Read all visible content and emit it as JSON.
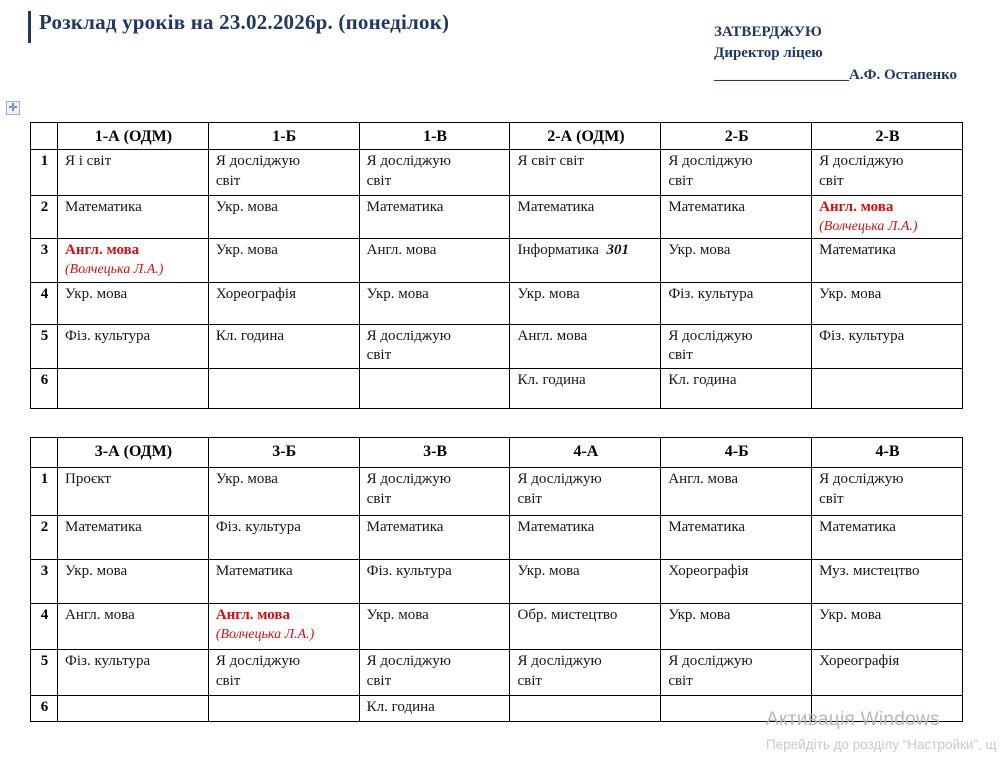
{
  "title": {
    "text": "Розклад уроків на 23.02.2026р. (понеділок)"
  },
  "approval": {
    "line1": "ЗАТВЕРДЖУЮ",
    "line2": "Директор ліцею",
    "line3_underscores": "__________________",
    "line3_name": "А.Ф. Остапенко"
  },
  "colors": {
    "title_navy": "#1F3864",
    "accent_red": "#D40F0F",
    "table_border": "#000000",
    "watermark_gray": "#B4B9BC"
  },
  "icons": {
    "table_move_handle": "✛"
  },
  "tables": [
    {
      "name": "grades-1-2",
      "headers": [
        "",
        "1-А (ОДМ)",
        "1-Б",
        "1-В",
        "2-А (ОДМ)",
        "2-Б",
        "2-В"
      ],
      "rows": [
        {
          "num": "1",
          "cells": [
            "Я і світ",
            "Я досліджую\nсвіт",
            "Я досліджую\nсвіт",
            "Я світ світ",
            "Я досліджую\nсвіт",
            "Я досліджую\nсвіт"
          ]
        },
        {
          "num": "2",
          "cells": [
            "Математика",
            "Укр. мова",
            "Математика",
            "Математика",
            "Математика",
            {
              "main": "Англ. мова",
              "sub": "(Волчецька Л.А.)",
              "style": "red"
            }
          ]
        },
        {
          "num": "3",
          "cells": [
            {
              "main": "Англ. мова",
              "sub": "(Волчецька Л.А.)",
              "style": "red"
            },
            "Укр. мова",
            "Англ. мова",
            {
              "main": "Інформатика",
              "room": "301"
            },
            "Укр. мова",
            "Математика"
          ]
        },
        {
          "num": "4",
          "cells": [
            "Укр. мова",
            "Хореографія",
            "Укр. мова",
            "Укр. мова",
            "Фіз. культура",
            "Укр. мова"
          ]
        },
        {
          "num": "5",
          "cells": [
            "Фіз. культура",
            "Кл. година",
            "Я досліджую\nсвіт",
            "Англ. мова",
            "Я досліджую\nсвіт",
            "Фіз. культура"
          ]
        },
        {
          "num": "6",
          "cells": [
            "",
            "",
            "",
            "Кл. година",
            "Кл. година",
            ""
          ]
        }
      ]
    },
    {
      "name": "grades-3-4",
      "headers": [
        "",
        "3-А (ОДМ)",
        "3-Б",
        "3-В",
        "4-А",
        "4-Б",
        "4-В"
      ],
      "rows": [
        {
          "num": "1",
          "cells": [
            "Проєкт",
            "Укр. мова",
            "Я досліджую\nсвіт",
            "Я досліджую\nсвіт",
            "Англ. мова",
            "Я досліджую\nсвіт"
          ]
        },
        {
          "num": "2",
          "cells": [
            "Математика",
            "Фіз. культура",
            "Математика",
            "Математика",
            "Математика",
            "Математика"
          ]
        },
        {
          "num": "3",
          "cells": [
            "Укр. мова",
            "Математика",
            "Фіз. культура",
            "Укр. мова",
            "Хореографія",
            "Муз. мистецтво"
          ]
        },
        {
          "num": "4",
          "cells": [
            "Англ. мова",
            {
              "main": "Англ. мова",
              "sub": "(Волчецька Л.А.)",
              "style": "red"
            },
            "Укр. мова",
            "Обр. мистецтво",
            "Укр. мова",
            "Укр. мова"
          ]
        },
        {
          "num": "5",
          "cells": [
            "Фіз. культура",
            "Я досліджую\nсвіт",
            "Я досліджую\nсвіт",
            "Я досліджую\nсвіт",
            "Я досліджую\nсвіт",
            "Хореографія"
          ]
        },
        {
          "num": "6",
          "cells": [
            "",
            "",
            "Кл. година",
            "",
            "",
            ""
          ]
        }
      ]
    }
  ],
  "watermark": {
    "line1": "Активація Windows",
    "line2": "Перейдіть до розділу “Настройки”, щ"
  }
}
